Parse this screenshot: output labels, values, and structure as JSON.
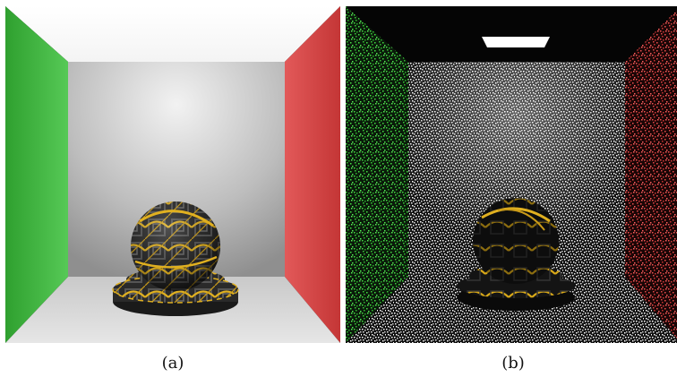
{
  "figure": {
    "panels": [
      {
        "label": "(a)",
        "render_style": "converged"
      },
      {
        "label": "(b)",
        "render_style": "noisy"
      }
    ],
    "colors": {
      "left_wall": "#3fbf3f",
      "right_wall": "#e04848",
      "back_wall": "#bdbdbd",
      "ceiling": "#ffffff",
      "floor": "#d6d6d6",
      "frame": "#000000",
      "object_pattern": "#e0b020",
      "object_base": "#262626"
    },
    "scene_objects": [
      "left-wall",
      "right-wall",
      "back-wall",
      "ceiling",
      "floor",
      "area-light",
      "textured-sphere",
      "pedestal"
    ]
  }
}
